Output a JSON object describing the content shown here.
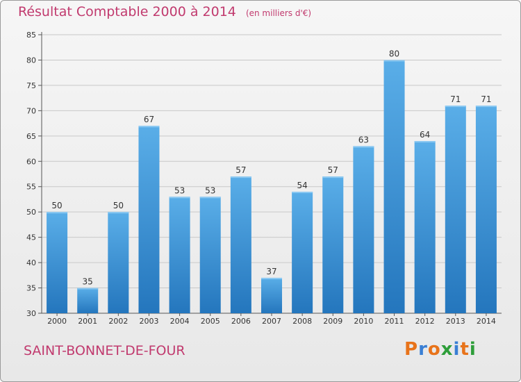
{
  "title": "Résultat Comptable 2000 à 2014",
  "unit_note": "(en milliers d'€)",
  "location": "SAINT-BONNET-DE-FOUR",
  "brand": "Proxiti",
  "colors": {
    "title": "#c13a6e",
    "bar_top": "#5aaee8",
    "bar_bottom": "#2476bd",
    "brand_letters": [
      "#e8731a",
      "#3a7fd4",
      "#e8731a",
      "#2e9e3a",
      "#3a7fd4",
      "#e8731a",
      "#2e9e3a"
    ]
  },
  "chart_data": {
    "type": "bar",
    "categories": [
      "2000",
      "2001",
      "2002",
      "2003",
      "2004",
      "2005",
      "2006",
      "2007",
      "2008",
      "2009",
      "2010",
      "2011",
      "2012",
      "2013",
      "2014"
    ],
    "values": [
      50,
      35,
      50,
      67,
      53,
      53,
      57,
      37,
      54,
      57,
      63,
      80,
      64,
      71,
      71
    ],
    "ylim": [
      30,
      85
    ],
    "yticks": [
      30,
      35,
      40,
      45,
      50,
      55,
      60,
      65,
      70,
      75,
      80,
      85
    ],
    "grid": true,
    "data_labels": true
  }
}
